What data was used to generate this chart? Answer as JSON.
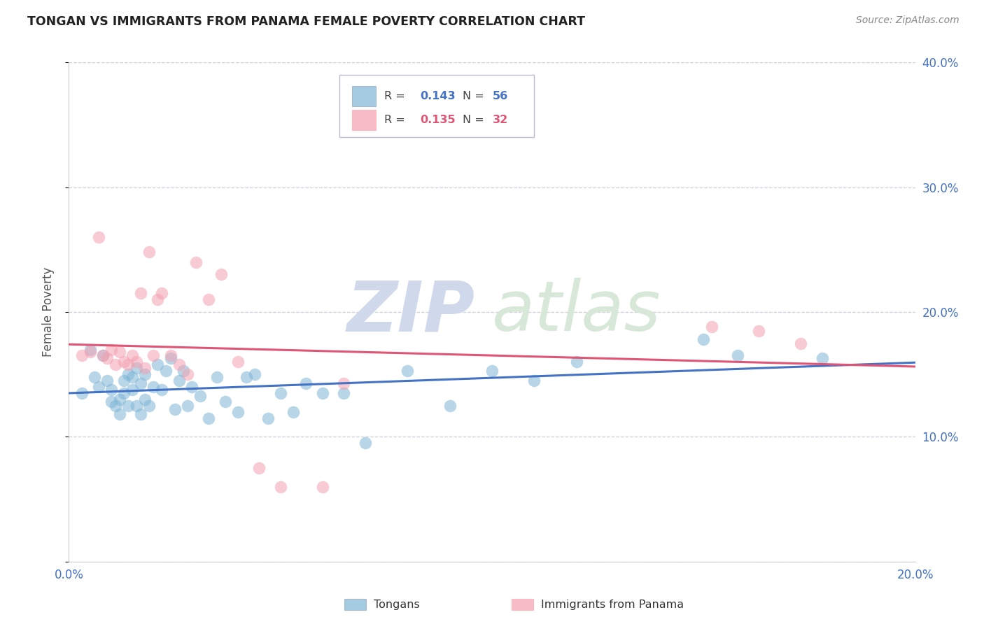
{
  "title": "TONGAN VS IMMIGRANTS FROM PANAMA FEMALE POVERTY CORRELATION CHART",
  "source": "Source: ZipAtlas.com",
  "ylabel_label": "Female Poverty",
  "x_min": 0.0,
  "x_max": 0.2,
  "y_min": 0.0,
  "y_max": 0.4,
  "blue_color": "#7EB5D6",
  "pink_color": "#F4A0B0",
  "blue_line_color": "#4472C4",
  "pink_line_color": "#E05575",
  "axis_color": "#4472C4",
  "grid_color": "#C8C8D8",
  "title_color": "#222222",
  "source_color": "#888888",
  "watermark_zip_color": "#D0D8EC",
  "watermark_atlas_color": "#D8E8D8",
  "blue_R": "0.143",
  "blue_N": "56",
  "pink_R": "0.135",
  "pink_N": "32",
  "blue_x": [
    0.003,
    0.005,
    0.006,
    0.007,
    0.008,
    0.009,
    0.01,
    0.01,
    0.011,
    0.012,
    0.012,
    0.013,
    0.013,
    0.014,
    0.014,
    0.015,
    0.015,
    0.016,
    0.016,
    0.017,
    0.017,
    0.018,
    0.018,
    0.019,
    0.02,
    0.021,
    0.022,
    0.023,
    0.024,
    0.025,
    0.026,
    0.027,
    0.028,
    0.029,
    0.031,
    0.033,
    0.035,
    0.037,
    0.04,
    0.042,
    0.044,
    0.047,
    0.05,
    0.053,
    0.056,
    0.06,
    0.065,
    0.07,
    0.08,
    0.09,
    0.1,
    0.11,
    0.12,
    0.15,
    0.158,
    0.178
  ],
  "blue_y": [
    0.135,
    0.17,
    0.148,
    0.14,
    0.165,
    0.145,
    0.128,
    0.138,
    0.125,
    0.118,
    0.13,
    0.145,
    0.135,
    0.15,
    0.125,
    0.138,
    0.148,
    0.125,
    0.155,
    0.143,
    0.118,
    0.13,
    0.15,
    0.125,
    0.14,
    0.158,
    0.138,
    0.153,
    0.163,
    0.122,
    0.145,
    0.153,
    0.125,
    0.14,
    0.133,
    0.115,
    0.148,
    0.128,
    0.12,
    0.148,
    0.15,
    0.115,
    0.135,
    0.12,
    0.143,
    0.135,
    0.135,
    0.095,
    0.153,
    0.125,
    0.153,
    0.145,
    0.16,
    0.178,
    0.165,
    0.163
  ],
  "pink_x": [
    0.003,
    0.005,
    0.007,
    0.008,
    0.009,
    0.01,
    0.011,
    0.012,
    0.013,
    0.014,
    0.015,
    0.016,
    0.017,
    0.018,
    0.019,
    0.02,
    0.021,
    0.022,
    0.024,
    0.026,
    0.028,
    0.03,
    0.033,
    0.036,
    0.04,
    0.045,
    0.05,
    0.06,
    0.065,
    0.152,
    0.163,
    0.173
  ],
  "pink_y": [
    0.165,
    0.168,
    0.26,
    0.165,
    0.163,
    0.17,
    0.158,
    0.168,
    0.16,
    0.158,
    0.165,
    0.16,
    0.215,
    0.155,
    0.248,
    0.165,
    0.21,
    0.215,
    0.165,
    0.158,
    0.15,
    0.24,
    0.21,
    0.23,
    0.16,
    0.075,
    0.06,
    0.06,
    0.143,
    0.188,
    0.185,
    0.175
  ]
}
